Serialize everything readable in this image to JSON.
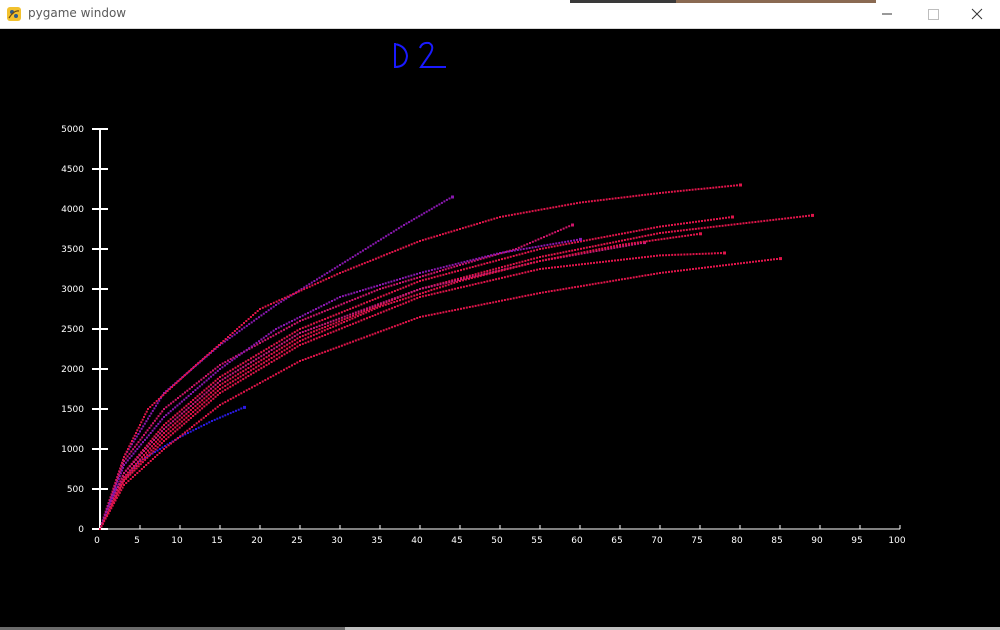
{
  "window": {
    "title": "pygame window"
  },
  "handwritten_label": "D2",
  "colors": {
    "background": "#000000",
    "axis": "#ffffff",
    "label": "#1a1aff",
    "series_primary": "#e0144a",
    "series_purple": "#8a18b0",
    "series_blue": "#2a1ae0"
  },
  "chart_data": {
    "type": "scatter",
    "xlim": [
      0,
      100
    ],
    "ylim": [
      0,
      5000
    ],
    "x_ticks": [
      "0",
      "5",
      "10",
      "15",
      "20",
      "25",
      "30",
      "35",
      "40",
      "45",
      "50",
      "55",
      "60",
      "65",
      "70",
      "75",
      "80",
      "85",
      "90",
      "95",
      "100"
    ],
    "y_ticks": [
      "0",
      "500",
      "1000",
      "1500",
      "2000",
      "2500",
      "3000",
      "3500",
      "4000",
      "4500",
      "5000"
    ],
    "grid": false,
    "series": [
      {
        "color": "#2a1ae0",
        "points": [
          [
            0,
            0
          ],
          [
            2,
            500
          ],
          [
            5,
            850
          ],
          [
            10,
            1150
          ],
          [
            14,
            1350
          ],
          [
            18,
            1520
          ]
        ]
      },
      {
        "color": "#8a18b0",
        "points": [
          [
            0,
            0
          ],
          [
            3,
            900
          ],
          [
            8,
            1700
          ],
          [
            15,
            2300
          ],
          [
            22,
            2800
          ],
          [
            30,
            3300
          ],
          [
            38,
            3800
          ],
          [
            44,
            4150
          ]
        ]
      },
      {
        "color": "#e0144a",
        "points": [
          [
            0,
            0
          ],
          [
            3,
            900
          ],
          [
            6,
            1500
          ],
          [
            12,
            2050
          ],
          [
            20,
            2750
          ],
          [
            30,
            3200
          ],
          [
            40,
            3600
          ],
          [
            50,
            3900
          ],
          [
            60,
            4080
          ],
          [
            70,
            4200
          ],
          [
            80,
            4300
          ]
        ]
      },
      {
        "color": "#d0156a",
        "points": [
          [
            0,
            0
          ],
          [
            3,
            850
          ],
          [
            8,
            1500
          ],
          [
            15,
            2050
          ],
          [
            25,
            2600
          ],
          [
            35,
            3000
          ],
          [
            45,
            3300
          ],
          [
            52,
            3500
          ],
          [
            59,
            3800
          ]
        ]
      },
      {
        "color": "#e0144a",
        "points": [
          [
            0,
            0
          ],
          [
            3,
            700
          ],
          [
            8,
            1300
          ],
          [
            15,
            1900
          ],
          [
            25,
            2500
          ],
          [
            40,
            3100
          ],
          [
            55,
            3500
          ],
          [
            70,
            3780
          ],
          [
            79,
            3900
          ]
        ]
      },
      {
        "color": "#e0144a",
        "points": [
          [
            0,
            0
          ],
          [
            3,
            650
          ],
          [
            8,
            1200
          ],
          [
            15,
            1800
          ],
          [
            25,
            2400
          ],
          [
            40,
            3000
          ],
          [
            55,
            3400
          ],
          [
            70,
            3700
          ],
          [
            89,
            3920
          ]
        ]
      },
      {
        "color": "#c81a78",
        "points": [
          [
            0,
            0
          ],
          [
            3,
            700
          ],
          [
            8,
            1250
          ],
          [
            15,
            1850
          ],
          [
            25,
            2450
          ],
          [
            40,
            3000
          ],
          [
            55,
            3350
          ],
          [
            68,
            3580
          ]
        ]
      },
      {
        "color": "#e0144a",
        "points": [
          [
            0,
            0
          ],
          [
            3,
            600
          ],
          [
            8,
            1100
          ],
          [
            15,
            1700
          ],
          [
            25,
            2300
          ],
          [
            40,
            2900
          ],
          [
            55,
            3250
          ],
          [
            70,
            3420
          ],
          [
            78,
            3450
          ]
        ]
      },
      {
        "color": "#e0144a",
        "points": [
          [
            0,
            0
          ],
          [
            3,
            550
          ],
          [
            8,
            1000
          ],
          [
            15,
            1550
          ],
          [
            25,
            2100
          ],
          [
            40,
            2650
          ],
          [
            55,
            2950
          ],
          [
            70,
            3200
          ],
          [
            85,
            3380
          ]
        ]
      },
      {
        "color": "#8a18b0",
        "points": [
          [
            0,
            0
          ],
          [
            3,
            800
          ],
          [
            8,
            1400
          ],
          [
            15,
            2000
          ],
          [
            22,
            2500
          ],
          [
            30,
            2900
          ],
          [
            40,
            3200
          ],
          [
            50,
            3450
          ],
          [
            60,
            3620
          ]
        ]
      },
      {
        "color": "#e0144a",
        "points": [
          [
            0,
            0
          ],
          [
            3,
            620
          ],
          [
            8,
            1150
          ],
          [
            15,
            1750
          ],
          [
            25,
            2350
          ],
          [
            35,
            2780
          ],
          [
            45,
            3100
          ],
          [
            55,
            3350
          ],
          [
            65,
            3550
          ],
          [
            75,
            3690
          ]
        ]
      }
    ]
  }
}
